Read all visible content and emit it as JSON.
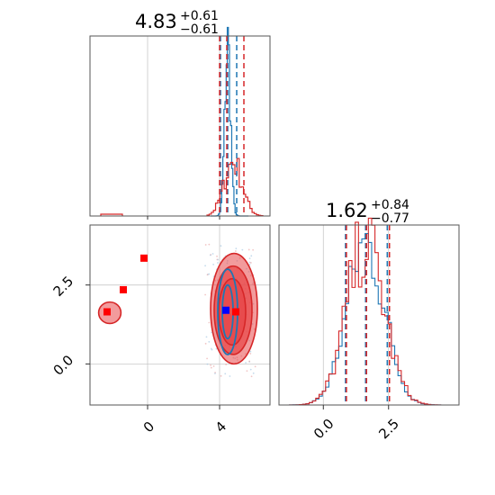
{
  "chart_data": {
    "type": "corner",
    "titles": {
      "param1": {
        "median": "4.83",
        "plus": "+0.61",
        "minus": "−0.61"
      },
      "param2": {
        "median": "1.62",
        "plus": "+0.84",
        "minus": "−0.77"
      }
    },
    "colors": {
      "blue": "#1f77b4",
      "red": "#d62728",
      "fill_red": "#e8494b",
      "marker_red": "#ff0000",
      "marker_blue": "#0000ff",
      "grid": "#c8c8c8"
    },
    "x_axis": {
      "range": [
        -3.2,
        6.8
      ],
      "ticks": [
        0,
        4
      ],
      "tick_labels": [
        "0",
        "4"
      ]
    },
    "y_axis": {
      "range": [
        -1.3,
        4.4
      ],
      "ticks": [
        0.0,
        2.5
      ],
      "tick_labels": [
        "0.0",
        "2.5"
      ]
    },
    "p2_axis": {
      "range": [
        -1.7,
        5.2
      ],
      "ticks": [
        0.0,
        2.5
      ],
      "tick_labels": [
        "0.0",
        "2.5"
      ]
    },
    "hist1": {
      "blue_quantiles": [
        4.05,
        4.45,
        4.95
      ],
      "red_quantiles": [
        4.0,
        4.4,
        5.35
      ],
      "blue_peak": 4.45,
      "blue_width": 0.16,
      "red_peak": 4.75,
      "red_width": 0.5,
      "red_tail": {
        "from": -2.6,
        "to": -1.4,
        "level": 0.012
      }
    },
    "hist2": {
      "blue_quantiles": [
        0.85,
        1.62,
        2.45
      ],
      "red_quantiles": [
        0.85,
        1.62,
        2.5
      ],
      "peak": 1.62,
      "width": 0.72
    },
    "scatter2d": {
      "red_markers": [
        {
          "x": -0.2,
          "y": 3.35
        },
        {
          "x": -1.35,
          "y": 2.35
        },
        {
          "x": -2.25,
          "y": 1.65
        },
        {
          "x": 4.9,
          "y": 1.65
        }
      ],
      "blue_markers": [
        {
          "x": 4.35,
          "y": 1.7
        }
      ],
      "red_contours": [
        {
          "cx": 4.8,
          "cy": 1.75,
          "rx": 1.3,
          "ry": 1.75,
          "opacity": 0.55
        },
        {
          "cx": 4.75,
          "cy": 1.7,
          "rx": 1.05,
          "ry": 1.4,
          "opacity": 0.75
        },
        {
          "cx": 4.7,
          "cy": 1.65,
          "rx": 0.75,
          "ry": 1.05,
          "opacity": 0.9
        }
      ],
      "blue_contours": [
        {
          "cx": 4.45,
          "cy": 1.65,
          "rx": 0.55,
          "ry": 1.35
        },
        {
          "cx": 4.45,
          "cy": 1.65,
          "rx": 0.3,
          "ry": 0.85
        }
      ],
      "red_outlier_blob": {
        "cx": -2.1,
        "cy": 1.62,
        "rx": 0.62,
        "ry": 0.34
      }
    }
  }
}
